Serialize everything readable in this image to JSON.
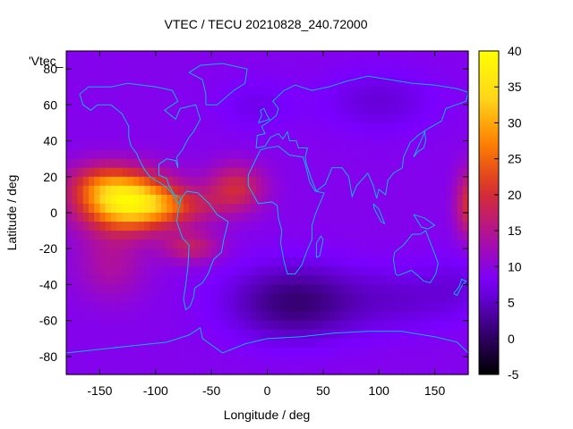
{
  "chart_data": {
    "type": "heatmap",
    "title": "VTEC / TECU 20210828_240.72000",
    "xlabel": "Longitude / deg",
    "ylabel": "Latitude / deg",
    "legend_key": "'Vtec_",
    "xlim": [
      -180,
      180
    ],
    "ylim": [
      -90,
      90
    ],
    "xticks": [
      -150,
      -100,
      -50,
      0,
      50,
      100,
      150
    ],
    "yticks": [
      -80,
      -60,
      -40,
      -20,
      0,
      20,
      40,
      60,
      80
    ],
    "colorbar": {
      "range": [
        -5,
        40
      ],
      "ticks": [
        -5,
        0,
        5,
        10,
        15,
        20,
        25,
        30,
        35,
        40
      ],
      "palette": [
        "#000000",
        "#3a007a",
        "#7a00ff",
        "#b0109a",
        "#d8302a",
        "#ff8000",
        "#ffd81a",
        "#ffff00"
      ]
    },
    "background_vtec": 9,
    "features": [
      {
        "name": "pacific-equatorial-peak",
        "lon": -125,
        "lat": 6,
        "vtec": 27,
        "sigma_lon": 30,
        "sigma_lat": 11
      },
      {
        "name": "pacific-north-crest",
        "lon": -150,
        "lat": 17,
        "vtec": 7,
        "sigma_lon": 22,
        "sigma_lat": 8
      },
      {
        "name": "central-american-band",
        "lon": -80,
        "lat": 3,
        "vtec": 7,
        "sigma_lon": 30,
        "sigma_lat": 7
      },
      {
        "name": "atlantic-crest",
        "lon": -28,
        "lat": 14,
        "vtec": 10,
        "sigma_lon": 18,
        "sigma_lat": 9
      },
      {
        "name": "south-america-crest",
        "lon": -68,
        "lat": -19,
        "vtec": 8,
        "sigma_lon": 18,
        "sigma_lat": 6
      },
      {
        "name": "south-pacific-tail",
        "lon": -140,
        "lat": -28,
        "vtec": 5,
        "sigma_lon": 22,
        "sigma_lat": 14
      },
      {
        "name": "dateline-east-edge",
        "lon": 182,
        "lat": 5,
        "vtec": 12,
        "sigma_lon": 9,
        "sigma_lat": 13
      },
      {
        "name": "south-atlantic-low",
        "lon": 25,
        "lat": -50,
        "vtec": -8,
        "sigma_lon": 40,
        "sigma_lat": 14
      },
      {
        "name": "southern-indian-low",
        "lon": 120,
        "lat": -48,
        "vtec": -3,
        "sigma_lon": 35,
        "sigma_lat": 12
      },
      {
        "name": "siberia-low",
        "lon": 100,
        "lat": 62,
        "vtec": -3,
        "sigma_lon": 35,
        "sigma_lat": 12
      },
      {
        "name": "north-atlantic-low",
        "lon": -10,
        "lat": 60,
        "vtec": -2,
        "sigma_lon": 25,
        "sigma_lat": 10
      },
      {
        "name": "pacific-south-low",
        "lon": 170,
        "lat": -40,
        "vtec": -2,
        "sigma_lon": 20,
        "sigma_lat": 12
      }
    ],
    "coastline_color": "#00c8ff",
    "grid": false,
    "legend": "colorbar-right"
  }
}
